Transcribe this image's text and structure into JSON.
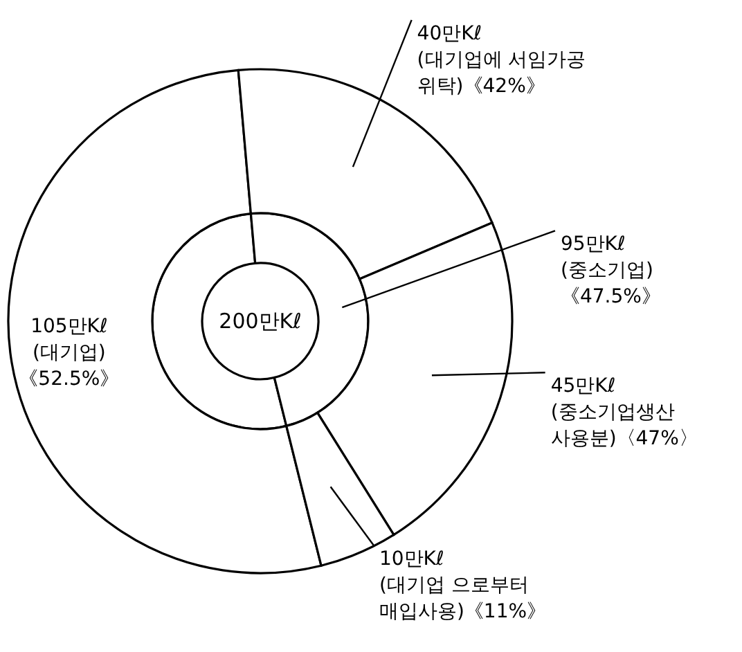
{
  "chart_data": {
    "type": "donut",
    "annotations": [
      "200만Kℓ"
    ],
    "series": [
      {
        "values": [
          105,
          95
        ],
        "value_labels": [
          null,
          "95만Kℓ\n(중소기업)\n《47.5%》"
        ],
        "colors": [
          "#ffffff",
          "#ffffff"
        ]
      },
      {
        "values": [
          105,
          40,
          45,
          10
        ],
        "value_labels": [
          "105만Kℓ\n(대기업)\n《52.5%》",
          "40만Kℓ\n(대기업에 서임가공\n위탁)《42%》",
          "45만Kℓ\n(중소기업생산\n사용분)〈47%〉",
          "10만Kℓ\n(대기업 으로부터\n매입사용)《11%》"
        ],
        "colors": [
          "#ffffff",
          "#ffffff",
          "#ffffff",
          "#ffffff"
        ]
      }
    ]
  }
}
